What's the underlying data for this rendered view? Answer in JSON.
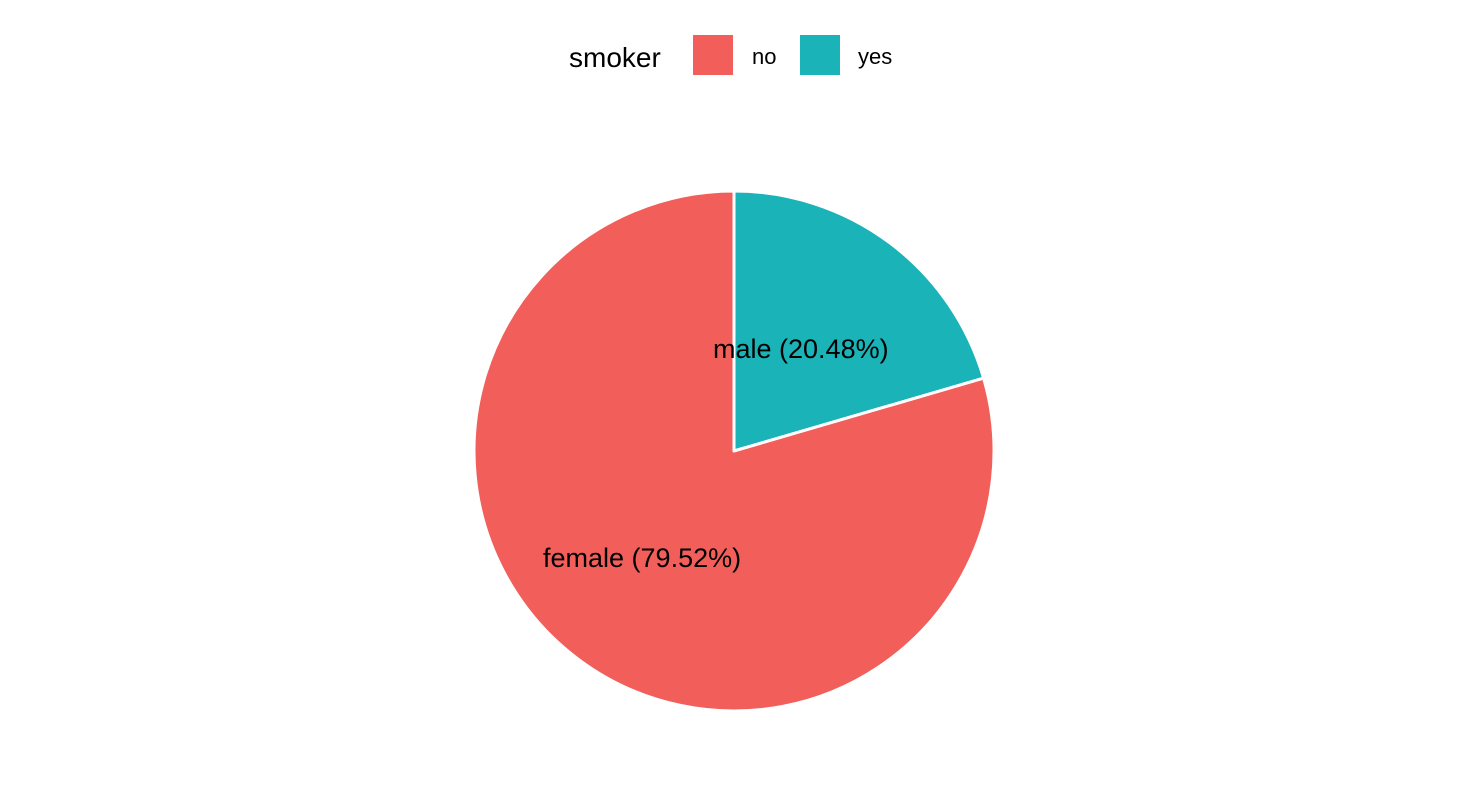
{
  "colors": {
    "background": "#ffffff",
    "no": "#f25e5a",
    "yes": "#19b3b8",
    "slice_border": "#ffffff",
    "text": "#000000"
  },
  "chart_data": {
    "type": "pie",
    "title": "",
    "legend": {
      "title": "smoker",
      "placement": "top",
      "entries": [
        {
          "key": "no",
          "label": "no",
          "color": "#f25e5a"
        },
        {
          "key": "yes",
          "label": "yes",
          "color": "#19b3b8"
        }
      ]
    },
    "slices": [
      {
        "category": "male",
        "smoker": "yes",
        "percent": 20.48,
        "label": "male (20.48%)",
        "color": "#19b3b8"
      },
      {
        "category": "female",
        "smoker": "no",
        "percent": 79.52,
        "label": "female (79.52%)",
        "color": "#f25e5a"
      }
    ],
    "start_angle": "12 o'clock",
    "direction": "clockwise"
  }
}
